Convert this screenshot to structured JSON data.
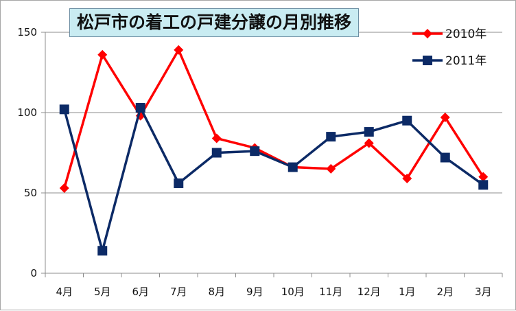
{
  "chart_data": {
    "type": "line",
    "title": "松戸市の着工の戸建分譲の月別推移",
    "xlabel": "",
    "ylabel": "",
    "categories": [
      "4月",
      "5月",
      "6月",
      "7月",
      "8月",
      "9月",
      "10月",
      "11月",
      "12月",
      "1月",
      "2月",
      "3月"
    ],
    "series": [
      {
        "name": "2010年",
        "color": "#ff0000",
        "marker": "diamond",
        "values": [
          53,
          136,
          98,
          139,
          84,
          78,
          66,
          65,
          81,
          59,
          97,
          60
        ]
      },
      {
        "name": "2011年",
        "color": "#0c2a66",
        "marker": "square",
        "values": [
          102,
          14,
          103,
          56,
          75,
          76,
          66,
          85,
          88,
          95,
          72,
          55
        ]
      }
    ],
    "ylim": [
      0,
      150
    ],
    "yticks": [
      0,
      50,
      100,
      150
    ],
    "grid": true,
    "legend": "top-right"
  }
}
